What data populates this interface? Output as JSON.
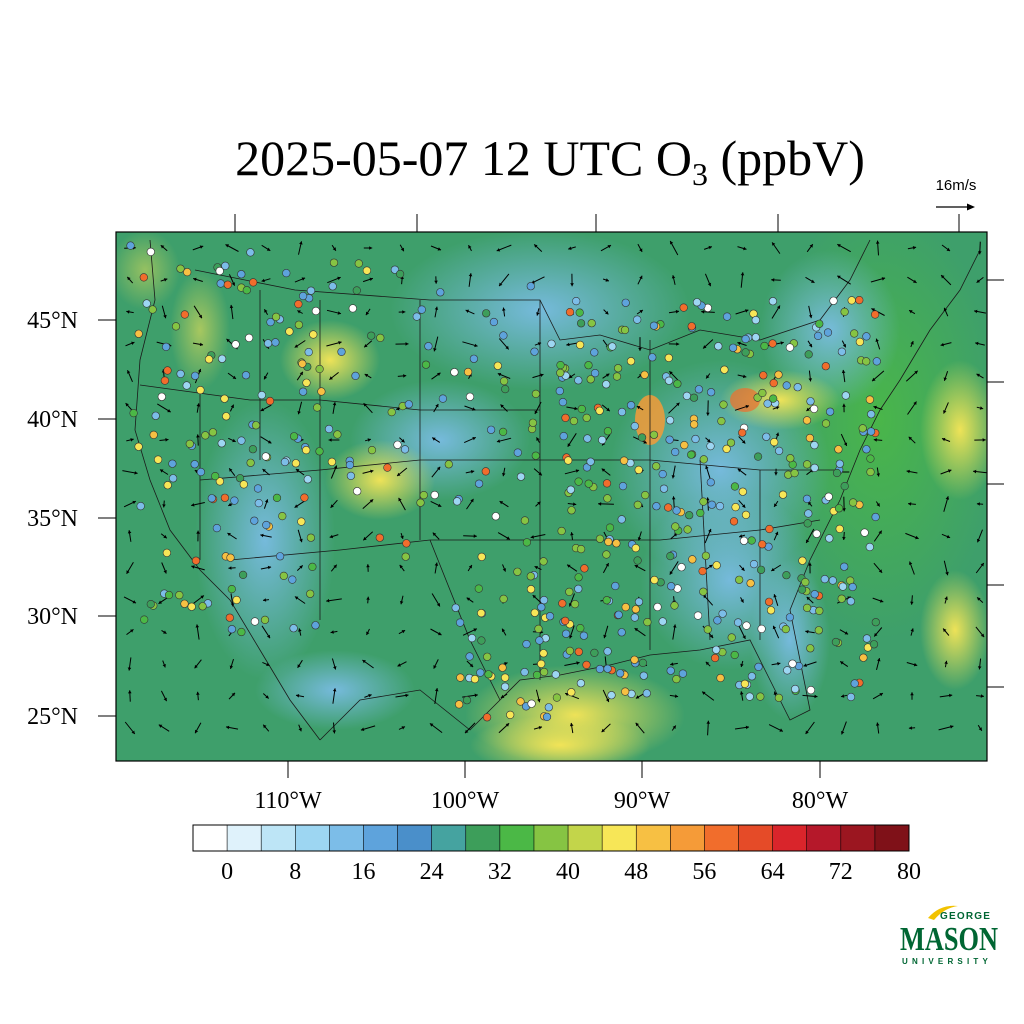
{
  "map": {
    "title_main": "2025-05-07 12 UTC O",
    "title_sub": "3",
    "title_units": " (ppbV)",
    "lat_labels": [
      "45°N",
      "40°N",
      "35°N",
      "30°N",
      "25°N"
    ],
    "lon_labels": [
      "110°W",
      "100°W",
      "90°W",
      "80°W"
    ],
    "wind_reference": "16m/s",
    "colorbar": {
      "ticks": [
        "0",
        "8",
        "16",
        "24",
        "32",
        "40",
        "48",
        "56",
        "64",
        "72",
        "80"
      ],
      "colors": [
        "#ffffff",
        "#dff2fb",
        "#bde5f6",
        "#9dd6f2",
        "#7cbde8",
        "#5ea3dc",
        "#4a8fca",
        "#45a3a0",
        "#3d9e5a",
        "#4bb846",
        "#86c443",
        "#c3d54a",
        "#f7e657",
        "#f7c043",
        "#f59b38",
        "#f16d2c",
        "#e54b28",
        "#d9252b",
        "#b5182a",
        "#9b1620",
        "#7f1118"
      ]
    },
    "colors": {
      "land_base": "#3d9e5a",
      "ocean": "#3f9e8f",
      "low_o3": "#7cbde8",
      "mid_o3": "#86c443",
      "high_o3": "#f7e657"
    },
    "logo": {
      "line1": "GEORGE",
      "line2": "MASON",
      "line3": "UNIVERSITY",
      "color": "#006633",
      "accent": "#f2c200"
    }
  }
}
